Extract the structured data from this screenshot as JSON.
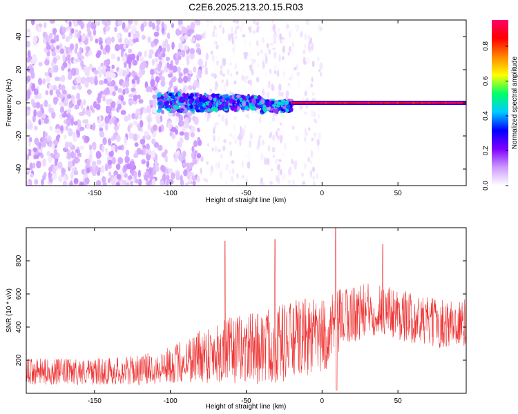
{
  "figure": {
    "title": "C2E6.2025.213.20.15.R03"
  },
  "chart_data": [
    {
      "type": "heatmap",
      "title": "",
      "xlabel": "Height of straight line (km)",
      "ylabel": "Frequency (Hz)",
      "xlim": [
        -195,
        95
      ],
      "ylim": [
        -50,
        50
      ],
      "xticks": [
        -150,
        -100,
        -50,
        0,
        50
      ],
      "yticks": [
        -40,
        -20,
        0,
        20,
        40
      ],
      "colorbar": {
        "label": "Normalized spectral amplitude",
        "range": [
          0.0,
          0.95
        ],
        "ticks": [
          0.0,
          0.2,
          0.4,
          0.6,
          0.8
        ],
        "colormap": [
          "#ffffff",
          "#cc99ff",
          "#7f00ff",
          "#0000ff",
          "#00ccff",
          "#00ff66",
          "#ffff00",
          "#ff8800",
          "#ff0000",
          "#ff0066"
        ]
      },
      "series": [
        {
          "values_description_regions": [
            {
              "x_range": [
                -195,
                -80
              ],
              "freq_range": [
                -50,
                50
              ],
              "amplitude_range": [
                0.02,
                0.12
              ]
            },
            {
              "x_range": [
                -80,
                0
              ],
              "freq_range": [
                -50,
                50
              ],
              "amplitude_range": [
                0.0,
                0.05
              ]
            },
            {
              "x_range": [
                -108,
                -20
              ],
              "freq_range": [
                -6,
                6
              ],
              "amplitude_range": [
                0.1,
                0.5
              ]
            },
            {
              "x_range": [
                -20,
                95
              ],
              "freq_range": [
                -1,
                1
              ],
              "amplitude_range": [
                0.8,
                0.95
              ]
            }
          ]
        }
      ]
    },
    {
      "type": "line",
      "title": "",
      "xlabel": "Height of straight line (km)",
      "ylabel": "SNR (10 * v/v)",
      "xlim": [
        -195,
        95
      ],
      "ylim": [
        0,
        1000
      ],
      "xticks": [
        -150,
        -100,
        -50,
        0,
        50
      ],
      "yticks": [
        200,
        400,
        600,
        800
      ],
      "color": "#ee3333",
      "envelope": {
        "x": [
          -195,
          -150,
          -120,
          -100,
          -80,
          -70,
          -60,
          -50,
          -40,
          -30,
          -20,
          -10,
          0,
          10,
          20,
          30,
          40,
          50,
          60,
          70,
          80,
          95
        ],
        "median": [
          130,
          130,
          140,
          170,
          230,
          250,
          260,
          270,
          280,
          300,
          320,
          340,
          330,
          420,
          480,
          500,
          510,
          480,
          450,
          430,
          420,
          420
        ],
        "spread": [
          80,
          80,
          90,
          110,
          170,
          190,
          200,
          210,
          230,
          240,
          240,
          240,
          230,
          200,
          180,
          170,
          160,
          160,
          150,
          150,
          150,
          150
        ]
      },
      "peaks": [
        {
          "x": -64,
          "y": 920
        },
        {
          "x": -31,
          "y": 930
        },
        {
          "x": 9,
          "y": 1000
        },
        {
          "x": 40,
          "y": 900
        }
      ]
    }
  ]
}
